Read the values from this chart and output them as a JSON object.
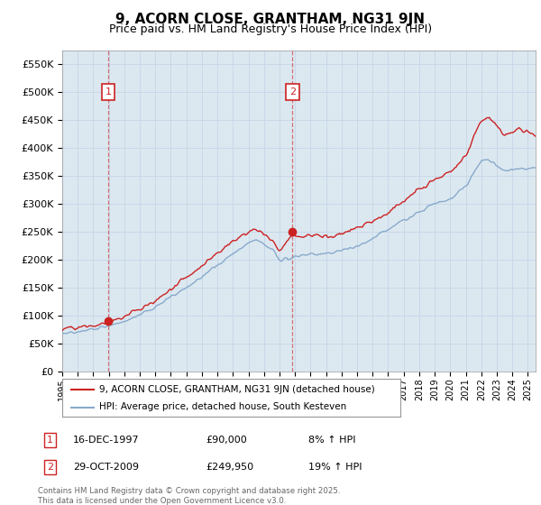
{
  "title": "9, ACORN CLOSE, GRANTHAM, NG31 9JN",
  "subtitle": "Price paid vs. HM Land Registry's House Price Index (HPI)",
  "ylabel_ticks": [
    "£0",
    "£50K",
    "£100K",
    "£150K",
    "£200K",
    "£250K",
    "£300K",
    "£350K",
    "£400K",
    "£450K",
    "£500K",
    "£550K"
  ],
  "ylim": [
    0,
    575000
  ],
  "xlim_start": 1995.0,
  "xlim_end": 2025.5,
  "purchase1": {
    "year": 1997.96,
    "price": 90000,
    "label": "1",
    "pct": "8%",
    "date": "16-DEC-1997"
  },
  "purchase2": {
    "year": 2009.83,
    "price": 249950,
    "label": "2",
    "pct": "19%",
    "date": "29-OCT-2009"
  },
  "legend_line1": "9, ACORN CLOSE, GRANTHAM, NG31 9JN (detached house)",
  "legend_line2": "HPI: Average price, detached house, South Kesteven",
  "footnote": "Contains HM Land Registry data © Crown copyright and database right 2025.\nThis data is licensed under the Open Government Licence v3.0.",
  "red_color": "#cc2222",
  "blue_color": "#88aacc",
  "dashed_color": "#cc2222",
  "grid_color": "#c8d8e8",
  "bg_color": "#dce8f0"
}
